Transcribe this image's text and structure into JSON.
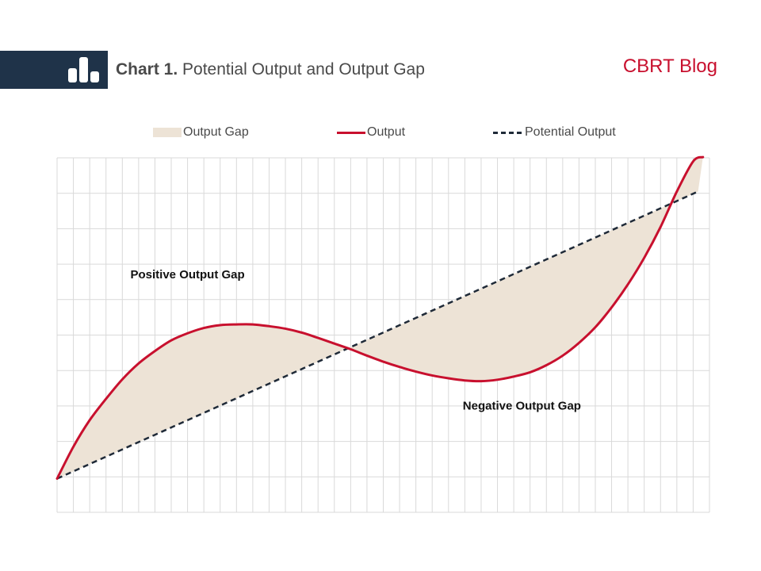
{
  "header": {
    "title_bold": "Chart 1.",
    "title_rest": " Potential Output and Output Gap",
    "brand": "CBRT Blog",
    "icon": "bar-chart-icon"
  },
  "legend": {
    "gap_label": "Output Gap",
    "output_label": "Output",
    "potential_label": "Potential Output"
  },
  "colors": {
    "header_band": "#1f3349",
    "brand": "#c8102e",
    "output_line": "#c8102e",
    "potential_line": "#1f2a38",
    "gap_fill": "#ede3d6",
    "grid": "#d9d9d9"
  },
  "chart_data": {
    "type": "line",
    "title": "Potential Output and Output Gap",
    "xlabel": "",
    "ylabel": "",
    "grid": true,
    "legend_position": "top",
    "xlim": [
      0,
      40
    ],
    "ylim": [
      0,
      10
    ],
    "series": [
      {
        "name": "Output",
        "style": "solid",
        "x": [
          0,
          1,
          2,
          3,
          4,
          5,
          6,
          7,
          8,
          9,
          10,
          11,
          12,
          13,
          14,
          15,
          16,
          17,
          18,
          19,
          20,
          21,
          22,
          23,
          24,
          25,
          26,
          27,
          28,
          29,
          30,
          31,
          32,
          33,
          34,
          35,
          36,
          37,
          38,
          39,
          39.6
        ],
        "y": [
          0.95,
          1.85,
          2.6,
          3.2,
          3.75,
          4.2,
          4.55,
          4.85,
          5.05,
          5.2,
          5.28,
          5.3,
          5.3,
          5.25,
          5.18,
          5.07,
          4.92,
          4.76,
          4.6,
          4.42,
          4.25,
          4.1,
          3.97,
          3.86,
          3.78,
          3.72,
          3.7,
          3.74,
          3.83,
          3.95,
          4.15,
          4.42,
          4.78,
          5.22,
          5.78,
          6.43,
          7.18,
          8.05,
          9.05,
          9.9,
          10.02
        ]
      },
      {
        "name": "Potential Output",
        "style": "dashed",
        "x": [
          0,
          39.3
        ],
        "y": [
          0.95,
          9.05
        ]
      }
    ],
    "fill_between": {
      "name": "Output Gap",
      "between": [
        "Output",
        "Potential Output"
      ]
    },
    "annotations": [
      {
        "text": "Positive Output Gap",
        "x": 8,
        "y": 6.6
      },
      {
        "text": "Negative Output Gap",
        "x": 28.5,
        "y": 2.9
      }
    ]
  }
}
